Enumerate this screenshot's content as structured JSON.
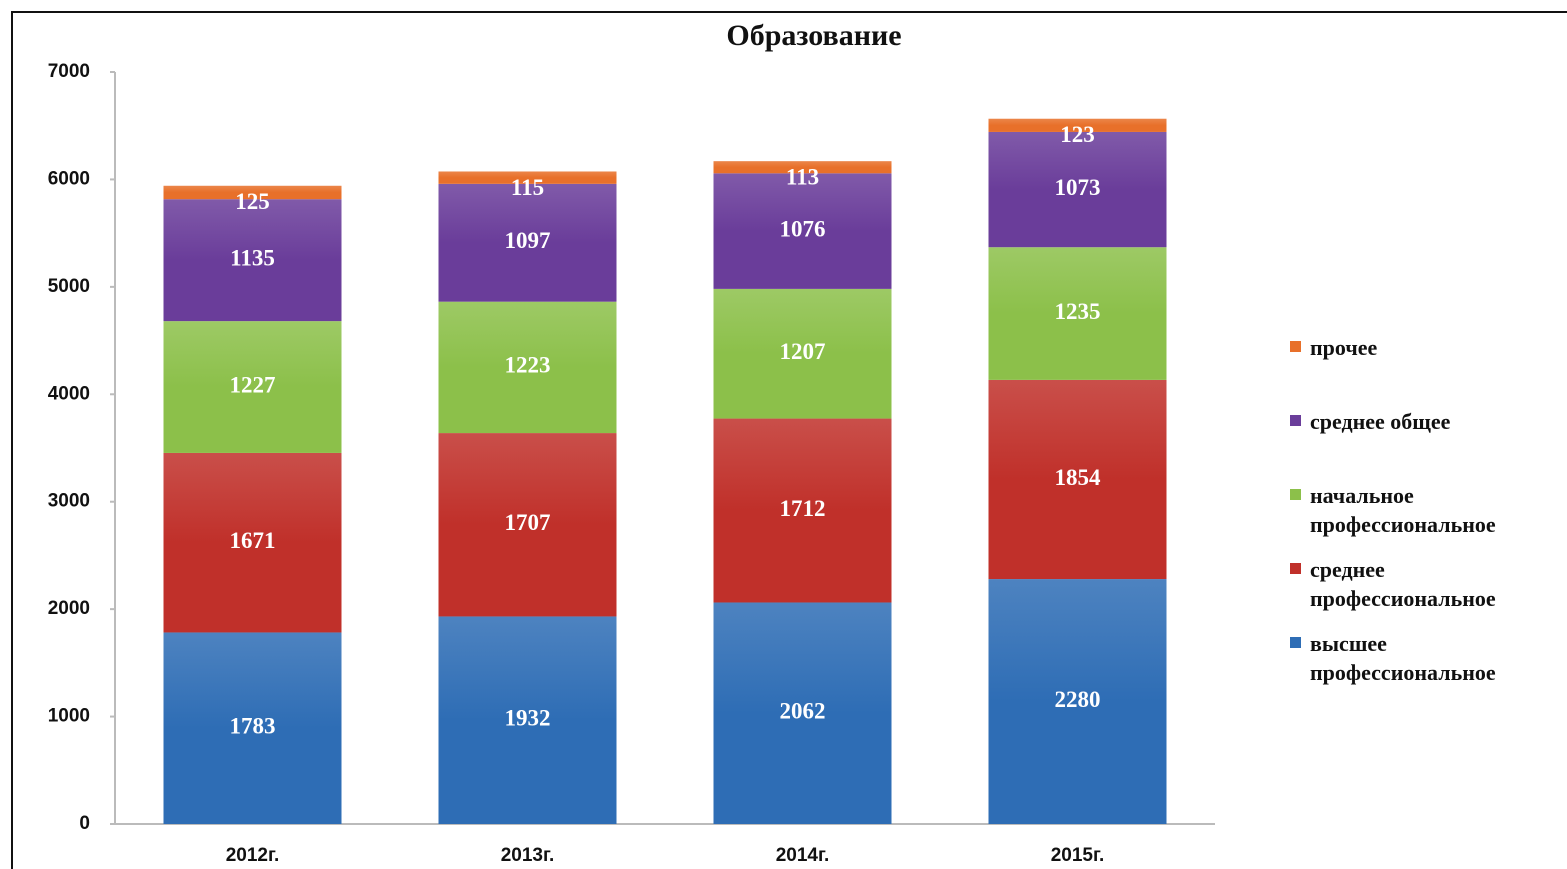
{
  "chart_data": {
    "type": "stacked_bar",
    "title": "Образование",
    "categories": [
      "2012г.",
      "2013г.",
      "2014г.",
      "2015г."
    ],
    "series": [
      {
        "name": "высшее профессиональное",
        "color": "#2e6db5",
        "values": [
          1783,
          1932,
          2062,
          2280
        ]
      },
      {
        "name": "среднее профессиональное",
        "color": "#c0302a",
        "values": [
          1671,
          1707,
          1712,
          1854
        ]
      },
      {
        "name": "начальное профессиональное",
        "color": "#8cc04a",
        "values": [
          1227,
          1223,
          1207,
          1235
        ]
      },
      {
        "name": "среднее общее",
        "color": "#6a3d9a",
        "values": [
          1135,
          1097,
          1076,
          1073
        ]
      },
      {
        "name": "прочее",
        "color": "#e8702a",
        "values": [
          125,
          115,
          113,
          123
        ]
      }
    ],
    "ylim": [
      0,
      7000
    ],
    "yticks": [
      0,
      1000,
      2000,
      3000,
      4000,
      5000,
      6000,
      7000
    ],
    "grid": false,
    "legend": "right"
  }
}
